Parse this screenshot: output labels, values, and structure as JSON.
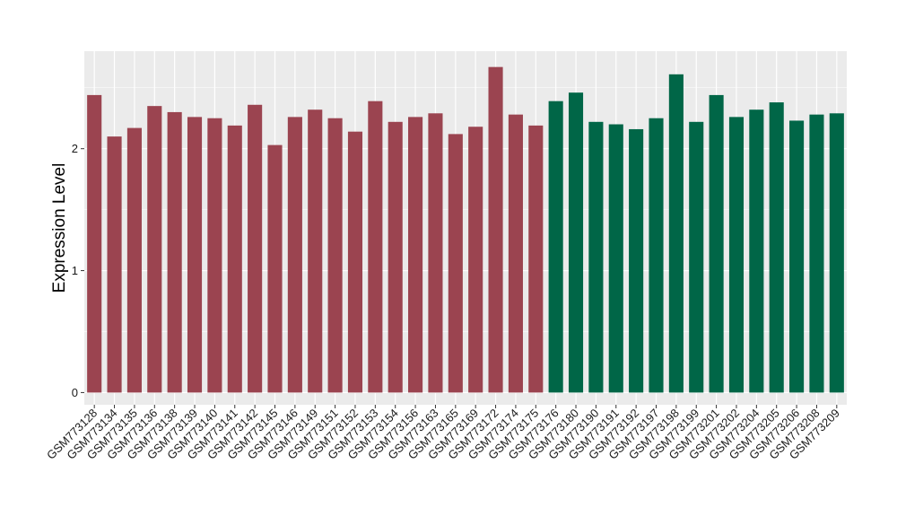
{
  "chart_data": {
    "type": "bar",
    "ylabel": "Expression Level",
    "xlabel": "",
    "yticks": [
      0,
      1,
      2
    ],
    "ylim": [
      -0.1,
      2.8
    ],
    "grid": true,
    "categories": [
      "GSM773128",
      "GSM773134",
      "GSM773135",
      "GSM773136",
      "GSM773138",
      "GSM773139",
      "GSM773140",
      "GSM773141",
      "GSM773142",
      "GSM773145",
      "GSM773146",
      "GSM773149",
      "GSM773151",
      "GSM773152",
      "GSM773153",
      "GSM773154",
      "GSM773156",
      "GSM773163",
      "GSM773165",
      "GSM773169",
      "GSM773172",
      "GSM773174",
      "GSM773175",
      "GSM773176",
      "GSM773180",
      "GSM773190",
      "GSM773191",
      "GSM773192",
      "GSM773197",
      "GSM773198",
      "GSM773199",
      "GSM773201",
      "GSM773202",
      "GSM773204",
      "GSM773205",
      "GSM773206",
      "GSM773208",
      "GSM773209"
    ],
    "values": [
      2.44,
      2.1,
      2.17,
      2.35,
      2.3,
      2.26,
      2.25,
      2.19,
      2.36,
      2.03,
      2.26,
      2.32,
      2.25,
      2.14,
      2.39,
      2.22,
      2.26,
      2.29,
      2.12,
      2.18,
      2.67,
      2.28,
      2.19,
      2.39,
      2.46,
      2.22,
      2.2,
      2.16,
      2.25,
      2.61,
      2.22,
      2.44,
      2.26,
      2.32,
      2.38,
      2.23,
      2.28,
      2.29
    ],
    "group_colors": [
      "#9b4450",
      "#9b4450",
      "#9b4450",
      "#9b4450",
      "#9b4450",
      "#9b4450",
      "#9b4450",
      "#9b4450",
      "#9b4450",
      "#9b4450",
      "#9b4450",
      "#9b4450",
      "#9b4450",
      "#9b4450",
      "#9b4450",
      "#9b4450",
      "#9b4450",
      "#9b4450",
      "#9b4450",
      "#9b4450",
      "#9b4450",
      "#9b4450",
      "#9b4450",
      "#006647",
      "#006647",
      "#006647",
      "#006647",
      "#006647",
      "#006647",
      "#006647",
      "#006647",
      "#006647",
      "#006647",
      "#006647",
      "#006647",
      "#006647",
      "#006647",
      "#006647"
    ],
    "panel_background": "#ebebeb",
    "grid_color": "#ffffff"
  }
}
